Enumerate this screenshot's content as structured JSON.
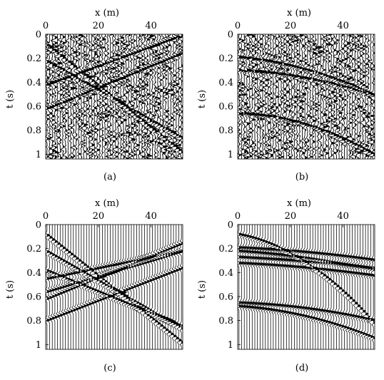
{
  "chart_data": [
    {
      "type": "seismic-wiggle",
      "caption": "(a)",
      "xlabel": "x (m)",
      "ylabel": "t (s)",
      "x_ticks": [
        "0",
        "20",
        "40"
      ],
      "y_ticks": [
        "0",
        "0.2",
        "0.4",
        "0.6",
        "0.8",
        "1"
      ],
      "xlim": [
        0,
        52
      ],
      "ylim": [
        0,
        1.04
      ],
      "traces": 52,
      "noise": "heavy",
      "events": [
        {
          "t0": 0.08,
          "slope": 0.0175
        },
        {
          "t0": 0.22,
          "slope": 0.0125
        },
        {
          "t0": 0.42,
          "slope": -0.008
        },
        {
          "t0": 0.62,
          "slope": -0.009
        }
      ]
    },
    {
      "type": "seismic-wiggle",
      "caption": "(b)",
      "xlabel": "x (m)",
      "ylabel": "t (s)",
      "x_ticks": [
        "0",
        "20",
        "40"
      ],
      "y_ticks": [
        "0",
        "0.2",
        "0.4",
        "0.6",
        "0.8",
        "1"
      ],
      "xlim": [
        0,
        52
      ],
      "ylim": [
        0,
        1.04
      ],
      "traces": 52,
      "noise": "heavy",
      "events": [
        {
          "t0": 0.19,
          "slope": 0.002,
          "curve": 8e-05
        },
        {
          "t0": 0.3,
          "slope": 0.001,
          "curve": 6e-05
        },
        {
          "t0": 0.66,
          "slope": 0.0005,
          "curve": 0.00012
        }
      ]
    },
    {
      "type": "seismic-wiggle",
      "caption": "(c)",
      "xlabel": "x (m)",
      "ylabel": "t (s)",
      "x_ticks": [
        "0",
        "20",
        "40"
      ],
      "y_ticks": [
        "0",
        "0.2",
        "0.4",
        "0.6",
        "0.8",
        "1"
      ],
      "xlim": [
        0,
        52
      ],
      "ylim": [
        0,
        1.04
      ],
      "traces": 52,
      "noise": "none",
      "events": [
        {
          "t0": 0.08,
          "slope": 0.0175
        },
        {
          "t0": 0.22,
          "slope": 0.0125
        },
        {
          "t0": 0.38,
          "slope": 0.009
        },
        {
          "t0": 0.45,
          "slope": -0.0045
        },
        {
          "t0": 0.56,
          "slope": -0.0065
        },
        {
          "t0": 0.62,
          "slope": -0.009
        },
        {
          "t0": 0.8,
          "slope": -0.0085
        }
      ]
    },
    {
      "type": "seismic-wiggle",
      "caption": "(d)",
      "xlabel": "x (m)",
      "ylabel": "t (s)",
      "x_ticks": [
        "0",
        "20",
        "40"
      ],
      "y_ticks": [
        "0",
        "0.2",
        "0.4",
        "0.6",
        "0.8",
        "1"
      ],
      "xlim": [
        0,
        52
      ],
      "ylim": [
        0,
        1.04
      ],
      "traces": 52,
      "noise": "none",
      "events": [
        {
          "t0": 0.08,
          "slope": 0.004,
          "curve": 0.0002
        },
        {
          "t0": 0.19,
          "slope": 0.001,
          "curve": 2e-05
        },
        {
          "t0": 0.22,
          "slope": 0.0015,
          "curve": 3e-05
        },
        {
          "t0": 0.27,
          "slope": 0.0012,
          "curve": 1e-05
        },
        {
          "t0": 0.32,
          "slope": 0.001,
          "curve": 2e-05
        },
        {
          "t0": 0.65,
          "slope": 0.0008,
          "curve": 4e-05
        },
        {
          "t0": 0.68,
          "slope": 0.0015,
          "curve": 7e-05
        }
      ]
    }
  ]
}
